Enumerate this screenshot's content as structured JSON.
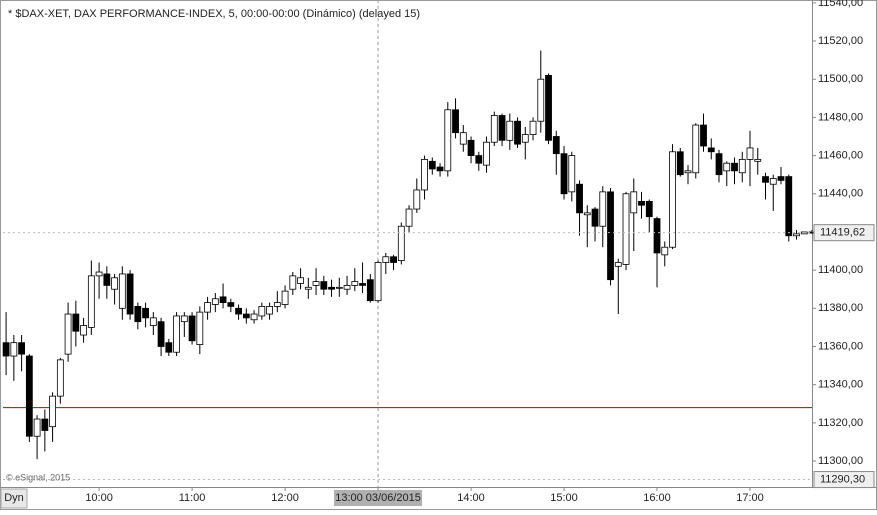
{
  "chart_data": {
    "type": "candlestick",
    "title": "* $DAX-XET, DAX PERFORMANCE-INDEX, 5, 00:00-00:00 (Dinámico) (delayed 15)",
    "copyright": "© eSignal, 2015",
    "mode_label": "Dyn",
    "up_color": "#ffffff",
    "down_color": "#000000",
    "x": [
      "09:00",
      "09:05",
      "09:10",
      "09:15",
      "09:20",
      "09:25",
      "09:30",
      "09:35",
      "09:40",
      "09:45",
      "09:50",
      "09:55",
      "10:00",
      "10:05",
      "10:10",
      "10:15",
      "10:20",
      "10:25",
      "10:30",
      "10:35",
      "10:40",
      "10:45",
      "10:50",
      "10:55",
      "11:00",
      "11:05",
      "11:10",
      "11:15",
      "11:20",
      "11:25",
      "11:30",
      "11:35",
      "11:40",
      "11:45",
      "11:50",
      "11:55",
      "12:00",
      "12:05",
      "12:10",
      "12:15",
      "12:20",
      "12:25",
      "12:30",
      "12:35",
      "12:40",
      "12:45",
      "12:50",
      "12:55",
      "13:00",
      "13:05",
      "13:10",
      "13:15",
      "13:20",
      "13:25",
      "13:30",
      "13:35",
      "13:40",
      "13:45",
      "13:50",
      "13:55",
      "14:00",
      "14:05",
      "14:10",
      "14:15",
      "14:20",
      "14:25",
      "14:30",
      "14:35",
      "14:40",
      "14:45",
      "14:50",
      "14:55",
      "15:00",
      "15:05",
      "15:10",
      "15:15",
      "15:20",
      "15:25",
      "15:30",
      "15:35",
      "15:40",
      "15:45",
      "15:50",
      "15:55",
      "16:00",
      "16:05",
      "16:10",
      "16:15",
      "16:20",
      "16:25",
      "16:30",
      "16:35",
      "16:40",
      "16:45",
      "16:50",
      "16:55",
      "17:00",
      "17:05",
      "17:10",
      "17:15",
      "17:20",
      "17:25",
      "17:30",
      "17:35",
      "17:40"
    ],
    "open": [
      11362,
      11355,
      11362,
      11355,
      11313,
      11322,
      11318,
      11334,
      11356,
      11377,
      11366,
      11370,
      11397,
      11398,
      11390,
      11380,
      11398,
      11381,
      11380,
      11371,
      11373,
      11362,
      11357,
      11373,
      11376,
      11361,
      11378,
      11382,
      11386,
      11383,
      11380,
      11377,
      11374,
      11376,
      11377,
      11381,
      11382,
      11390,
      11393,
      11390,
      11392,
      11394,
      11391,
      11391,
      11390,
      11392,
      11393,
      11395,
      11384,
      11404,
      11407,
      11405,
      11423,
      11432,
      11442,
      11457,
      11454,
      11452,
      11484,
      11466,
      11468,
      11460,
      11455,
      11467,
      11481,
      11468,
      11478,
      11467,
      11471,
      11478,
      11502,
      11470,
      11461,
      11441,
      11445,
      11429,
      11432,
      11423,
      11441,
      11402,
      11403,
      11430,
      11436,
      11436,
      11427,
      11408,
      11412,
      11462,
      11451,
      11451,
      11476,
      11464,
      11461,
      11452,
      11456,
      11451,
      11458,
      11457,
      11449,
      11445,
      11449,
      11449,
      11418,
      11419,
      11420
    ],
    "high": [
      11378,
      11366,
      11366,
      11356,
      11324,
      11327,
      11336,
      11354,
      11383,
      11384,
      11375,
      11405,
      11404,
      11402,
      11398,
      11402,
      11400,
      11383,
      11383,
      11378,
      11375,
      11364,
      11378,
      11378,
      11378,
      11381,
      11386,
      11388,
      11393,
      11385,
      11382,
      11380,
      11379,
      11383,
      11383,
      11389,
      11392,
      11399,
      11401,
      11396,
      11401,
      11397,
      11395,
      11396,
      11397,
      11401,
      11404,
      11398,
      11405,
      11409,
      11408,
      11425,
      11434,
      11448,
      11460,
      11459,
      11456,
      11488,
      11490,
      11476,
      11470,
      11462,
      11470,
      11483,
      11482,
      11482,
      11480,
      11475,
      11480,
      11515,
      11503,
      11473,
      11465,
      11462,
      11447,
      11434,
      11433,
      11444,
      11443,
      11406,
      11441,
      11448,
      11441,
      11437,
      11428,
      11415,
      11466,
      11464,
      11455,
      11477,
      11482,
      11469,
      11463,
      11457,
      11459,
      11462,
      11473,
      11464,
      11451,
      11450,
      11454,
      11450,
      11421,
      11420,
      11421
    ],
    "low": [
      11345,
      11342,
      11347,
      11310,
      11301,
      11305,
      11310,
      11330,
      11352,
      11360,
      11362,
      11366,
      11385,
      11385,
      11382,
      11374,
      11374,
      11369,
      11370,
      11366,
      11355,
      11355,
      11355,
      11365,
      11361,
      11356,
      11374,
      11378,
      11380,
      11378,
      11374,
      11372,
      11372,
      11374,
      11374,
      11378,
      11380,
      11387,
      11390,
      11385,
      11387,
      11387,
      11386,
      11386,
      11387,
      11389,
      11388,
      11383,
      11383,
      11398,
      11400,
      11403,
      11420,
      11430,
      11437,
      11450,
      11449,
      11449,
      11469,
      11462,
      11456,
      11452,
      11451,
      11465,
      11465,
      11463,
      11464,
      11458,
      11468,
      11472,
      11466,
      11450,
      11437,
      11436,
      11418,
      11412,
      11415,
      11412,
      11392,
      11377,
      11400,
      11410,
      11427,
      11420,
      11391,
      11402,
      11411,
      11449,
      11445,
      11448,
      11462,
      11458,
      11446,
      11444,
      11445,
      11446,
      11444,
      11450,
      11437,
      11431,
      11445,
      11415,
      11416,
      11419,
      11419
    ],
    "close": [
      11355,
      11362,
      11356,
      11313,
      11322,
      11316,
      11334,
      11353,
      11377,
      11368,
      11371,
      11397,
      11399,
      11392,
      11396,
      11398,
      11377,
      11373,
      11375,
      11375,
      11360,
      11357,
      11376,
      11376,
      11363,
      11378,
      11383,
      11385,
      11383,
      11381,
      11377,
      11375,
      11377,
      11381,
      11381,
      11383,
      11389,
      11397,
      11396,
      11391,
      11394,
      11390,
      11390,
      11391,
      11392,
      11394,
      11392,
      11384,
      11404,
      11407,
      11404,
      11423,
      11432,
      11442,
      11458,
      11453,
      11452,
      11484,
      11472,
      11472,
      11460,
      11456,
      11467,
      11481,
      11468,
      11478,
      11466,
      11471,
      11478,
      11500,
      11468,
      11461,
      11440,
      11460,
      11430,
      11430,
      11423,
      11441,
      11395,
      11404,
      11440,
      11441,
      11434,
      11428,
      11409,
      11412,
      11462,
      11450,
      11452,
      11476,
      11465,
      11462,
      11450,
      11456,
      11452,
      11458,
      11464,
      11458,
      11446,
      11448,
      11447,
      11418,
      11419,
      11420,
      11419.62
    ],
    "xlim": [
      "08:58",
      "17:40"
    ],
    "xticks": [
      "10:00",
      "11:00",
      "12:00",
      "13:00",
      "14:00",
      "15:00",
      "16:00",
      "17:00"
    ],
    "ylim": [
      11286.4,
      11541.5
    ],
    "yticks": [
      {
        "value": 11300,
        "label": "11300,00"
      },
      {
        "value": 11320,
        "label": "11320,00"
      },
      {
        "value": 11340,
        "label": "11340,00"
      },
      {
        "value": 11360,
        "label": "11360,00"
      },
      {
        "value": 11380,
        "label": "11380,00"
      },
      {
        "value": 11400,
        "label": "11400,00"
      },
      {
        "value": 11420,
        "label": "11420,00"
      },
      {
        "value": 11440,
        "label": "11440,00"
      },
      {
        "value": 11460,
        "label": "11460,00"
      },
      {
        "value": 11480,
        "label": "11480,00"
      },
      {
        "value": 11500,
        "label": "11500,00"
      },
      {
        "value": 11520,
        "label": "11520,00"
      },
      {
        "value": 11540,
        "label": "11540,00"
      }
    ],
    "price_markers": [
      {
        "value": 11419.62,
        "label": "11419,62"
      },
      {
        "value": 11290.3,
        "label": "11290,30"
      }
    ],
    "reference_line": {
      "value": 11328,
      "color": "#c00000"
    },
    "crosshair": {
      "x": "13:00",
      "label": "13:00 03/06/2015"
    }
  }
}
